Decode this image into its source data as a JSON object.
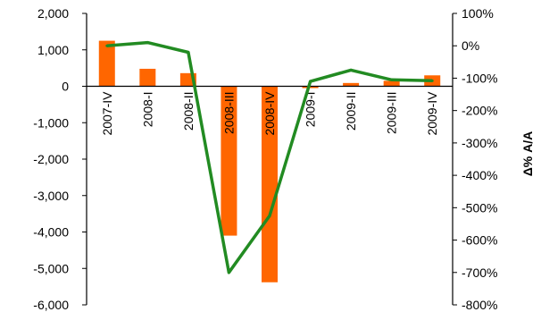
{
  "chart_data": {
    "type": "bar",
    "categories": [
      "2007-IV",
      "2008-I",
      "2008-II",
      "2008-III",
      "2008-IV",
      "2009-I",
      "2009-II",
      "2009-III",
      "2009-IV"
    ],
    "series": [
      {
        "type": "bar",
        "axis": "left",
        "color": "#ff6600",
        "values": [
          1250,
          480,
          360,
          -4100,
          -5380,
          -50,
          90,
          150,
          300
        ]
      },
      {
        "type": "line",
        "axis": "right",
        "color": "#228b22",
        "values": [
          0,
          10,
          -20,
          -700,
          -525,
          -110,
          -75,
          -105,
          -108
        ]
      }
    ],
    "y_left": {
      "min": -6000,
      "max": 2000,
      "step": 1000,
      "tick_labels": [
        "2,000",
        "1,000",
        "0",
        "-1,000",
        "-2,000",
        "-3,000",
        "-4,000",
        "-5,000",
        "-6,000"
      ]
    },
    "y_right": {
      "label": "Δ% A/A",
      "min": -800,
      "max": 100,
      "step": 100,
      "tick_labels": [
        "100%",
        "0%",
        "-100%",
        "-200%",
        "-300%",
        "-400%",
        "-500%",
        "-600%",
        "-700%",
        "-800%"
      ]
    },
    "grid": false,
    "legend": "none"
  }
}
